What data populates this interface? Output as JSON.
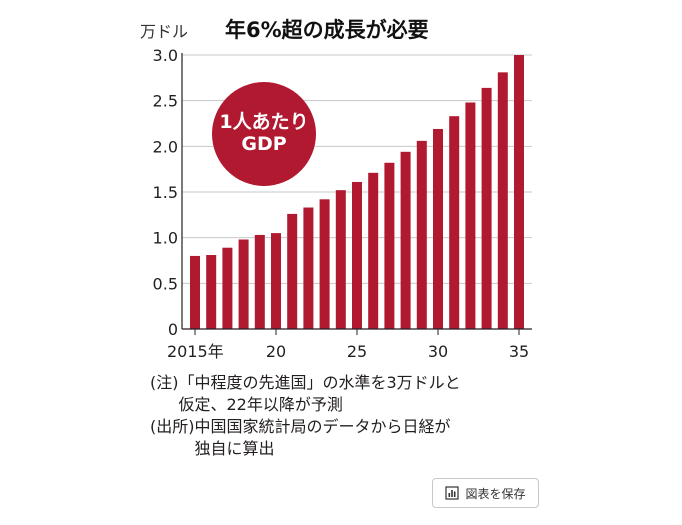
{
  "header": {
    "unit_label": "万ドル",
    "title": "年6%超の成長が必要"
  },
  "badge": {
    "line1": "1人あたり",
    "line2": "GDP"
  },
  "notes": {
    "note_tag": "(注)",
    "note_line1": "「中程度の先進国」の水準を3万ドルと",
    "note_line2": "仮定、22年以降が予測",
    "source_tag": "(出所)",
    "source_line1": "中国国家統計局のデータから日経が",
    "source_line2": "独自に算出"
  },
  "save_button": {
    "label": "図表を保存",
    "icon": "chart-icon"
  },
  "colors": {
    "bar": "#b0192f",
    "grid": "#c8c8c8",
    "axis": "#231f20"
  },
  "chart_data": {
    "type": "bar",
    "title": "年6%超の成長が必要",
    "ylabel": "万ドル",
    "ylim": [
      0,
      3.0
    ],
    "yticks": [
      "0",
      "0.5",
      "1.0",
      "1.5",
      "2.0",
      "2.5",
      "3.0"
    ],
    "ytick_values": [
      0,
      0.5,
      1.0,
      1.5,
      2.0,
      2.5,
      3.0
    ],
    "grid": true,
    "categories": [
      2015,
      2016,
      2017,
      2018,
      2019,
      2020,
      2021,
      2022,
      2023,
      2024,
      2025,
      2026,
      2027,
      2028,
      2029,
      2030,
      2031,
      2032,
      2033,
      2034,
      2035
    ],
    "values": [
      0.8,
      0.81,
      0.89,
      0.98,
      1.03,
      1.05,
      1.26,
      1.33,
      1.42,
      1.52,
      1.61,
      1.71,
      1.82,
      1.94,
      2.06,
      2.19,
      2.33,
      2.48,
      2.64,
      2.81,
      3.0
    ],
    "xtick_labels": [
      {
        "category": 2015,
        "label": "2015年"
      },
      {
        "category": 2020,
        "label": "20"
      },
      {
        "category": 2025,
        "label": "25"
      },
      {
        "category": 2030,
        "label": "30"
      },
      {
        "category": 2035,
        "label": "35"
      }
    ]
  }
}
